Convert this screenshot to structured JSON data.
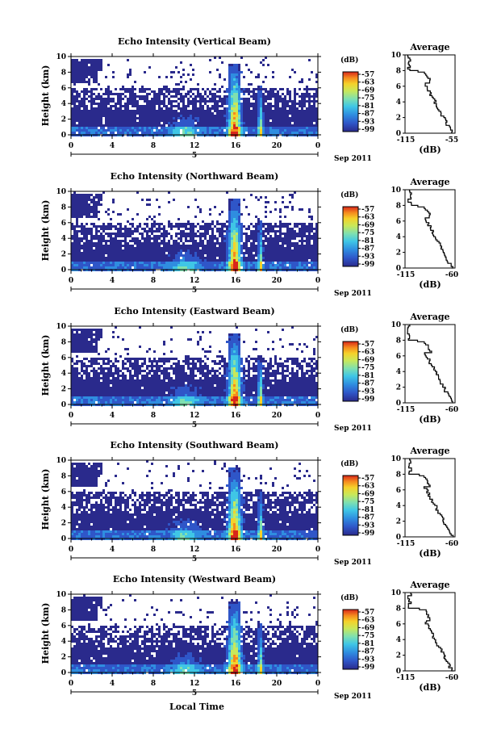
{
  "figure": {
    "xaxis_label": "Local Time",
    "date_label": "Sep 2011"
  },
  "chart_data": [
    {
      "type": "heatmap",
      "title": "Echo Intensity (Vertical Beam)",
      "ylabel": "Height (km)",
      "ylim": [
        0,
        10
      ],
      "yticks": [
        "0",
        "2",
        "4",
        "6",
        "8",
        "10"
      ],
      "xlim": [
        0,
        24
      ],
      "xticks": [
        "0",
        "4",
        "8",
        "12",
        "16",
        "20",
        "0"
      ],
      "day_label": "5",
      "colorbar": {
        "unit": "(dB)",
        "ticks": [
          "-57",
          "-63",
          "-69",
          "-75",
          "-81",
          "-87",
          "-93",
          "-99"
        ]
      },
      "profile": {
        "title": "Average",
        "xlabel": "(dB)",
        "xticks": [
          "-115",
          "-55"
        ],
        "yticks": [
          "0",
          "2",
          "4",
          "6",
          "8",
          "10"
        ]
      }
    },
    {
      "type": "heatmap",
      "title": "Echo Intensity (Northward Beam)",
      "ylabel": "Height (km)",
      "ylim": [
        0,
        10
      ],
      "yticks": [
        "0",
        "2",
        "4",
        "6",
        "8",
        "10"
      ],
      "xlim": [
        0,
        24
      ],
      "xticks": [
        "0",
        "4",
        "8",
        "12",
        "16",
        "20",
        "0"
      ],
      "day_label": "5",
      "colorbar": {
        "unit": "(dB)",
        "ticks": [
          "-57",
          "-63",
          "-69",
          "-75",
          "-81",
          "-87",
          "-93",
          "-99"
        ]
      },
      "profile": {
        "title": "Average",
        "xlabel": "(dB)",
        "xticks": [
          "-115",
          "-60"
        ],
        "yticks": [
          "0",
          "2",
          "4",
          "6",
          "8",
          "10"
        ]
      }
    },
    {
      "type": "heatmap",
      "title": "Echo Intensity (Eastward Beam)",
      "ylabel": "Height (km)",
      "ylim": [
        0,
        10
      ],
      "yticks": [
        "0",
        "2",
        "4",
        "6",
        "8",
        "10"
      ],
      "xlim": [
        0,
        24
      ],
      "xticks": [
        "0",
        "4",
        "8",
        "12",
        "16",
        "20",
        "0"
      ],
      "day_label": "5",
      "colorbar": {
        "unit": "(dB)",
        "ticks": [
          "-57",
          "-63",
          "-69",
          "-75",
          "-81",
          "-87",
          "-93",
          "-99"
        ]
      },
      "profile": {
        "title": "Average",
        "xlabel": "(dB)",
        "xticks": [
          "-115",
          "-60"
        ],
        "yticks": [
          "0",
          "2",
          "4",
          "6",
          "8",
          "10"
        ]
      }
    },
    {
      "type": "heatmap",
      "title": "Echo Intensity (Southward Beam)",
      "ylabel": "Height (km)",
      "ylim": [
        0,
        10
      ],
      "yticks": [
        "0",
        "2",
        "4",
        "6",
        "8",
        "10"
      ],
      "xlim": [
        0,
        24
      ],
      "xticks": [
        "0",
        "4",
        "8",
        "12",
        "16",
        "20",
        "0"
      ],
      "day_label": "5",
      "colorbar": {
        "unit": "(dB)",
        "ticks": [
          "-57",
          "-63",
          "-69",
          "-75",
          "-81",
          "-87",
          "-93",
          "-99"
        ]
      },
      "profile": {
        "title": "Average",
        "xlabel": "(dB)",
        "xticks": [
          "-115",
          "-60"
        ],
        "yticks": [
          "0",
          "2",
          "4",
          "6",
          "8",
          "10"
        ]
      }
    },
    {
      "type": "heatmap",
      "title": "Echo Intensity (Westward Beam)",
      "ylabel": "Height (km)",
      "ylim": [
        0,
        10
      ],
      "yticks": [
        "0",
        "2",
        "4",
        "6",
        "8",
        "10"
      ],
      "xlim": [
        0,
        24
      ],
      "xticks": [
        "0",
        "4",
        "8",
        "12",
        "16",
        "20",
        "0"
      ],
      "day_label": "5",
      "colorbar": {
        "unit": "(dB)",
        "ticks": [
          "-57",
          "-63",
          "-69",
          "-75",
          "-81",
          "-87",
          "-93",
          "-99"
        ]
      },
      "profile": {
        "title": "Average",
        "xlabel": "(dB)",
        "xticks": [
          "-115",
          "-60"
        ],
        "yticks": [
          "0",
          "2",
          "4",
          "6",
          "8",
          "10"
        ]
      }
    }
  ],
  "colors": {
    "background_echo": "#2b3a8f",
    "colormap": [
      "#2a2a8c",
      "#2f56c8",
      "#2f8de0",
      "#3fc6e6",
      "#7fe0b0",
      "#c8e85a",
      "#f5d22a",
      "#f58a1e",
      "#d8261a"
    ]
  }
}
